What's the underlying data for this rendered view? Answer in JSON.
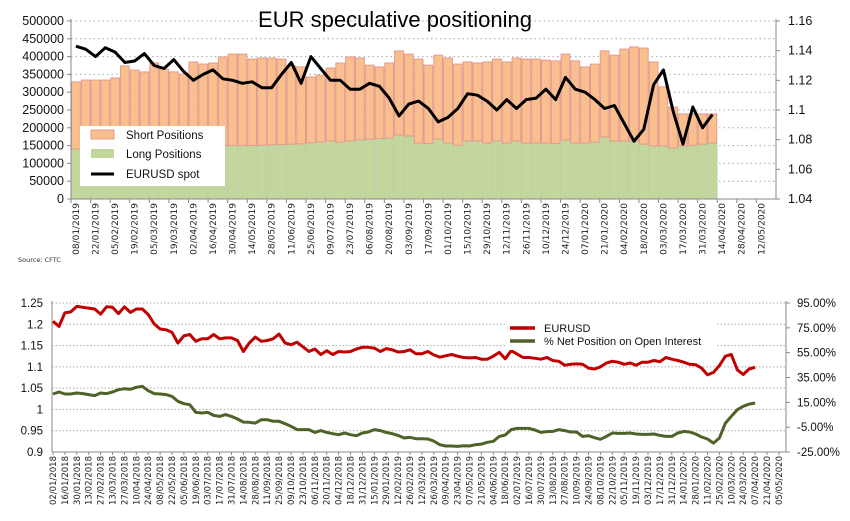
{
  "chart_data": [
    {
      "type": "bar",
      "stacked": true,
      "title": "EUR speculative positioning",
      "source": "Source: CFTC",
      "ylim": [
        0,
        500000
      ],
      "y_ticks": [
        "500000",
        "450000",
        "400000",
        "350000",
        "300000",
        "250000",
        "200000",
        "150000",
        "100000",
        "50000",
        "0"
      ],
      "y2lim": [
        1.04,
        1.16
      ],
      "y2_ticks": [
        "1.16",
        "1.14",
        "1.12",
        "1.1",
        "1.08",
        "1.06",
        "1.04"
      ],
      "grid": true,
      "legend_position": "bottom-left",
      "x_tick_labels": [
        "08/01/2019",
        "22/01/2019",
        "05/02/2019",
        "19/02/2019",
        "05/03/2019",
        "19/03/2019",
        "02/04/2019",
        "16/04/2019",
        "30/04/2019",
        "14/05/2019",
        "28/05/2019",
        "11/06/2019",
        "25/06/2019",
        "09/07/2019",
        "23/07/2019",
        "06/08/2019",
        "20/08/2019",
        "03/09/2019",
        "17/09/2019",
        "01/10/2019",
        "15/10/2019",
        "29/10/2019",
        "12/11/2019",
        "26/11/2019",
        "10/12/2019",
        "24/12/2019",
        "07/01/2020",
        "21/01/2020",
        "04/02/2020",
        "18/02/2020",
        "03/03/2020",
        "17/03/2020",
        "31/03/2020",
        "14/04/2020",
        "28/04/2020",
        "12/05/2020"
      ],
      "series": [
        {
          "name": "Short Positions",
          "type": "bar",
          "color": "#f9bf8f",
          "values": [
            189000,
            191000,
            191000,
            191000,
            195000,
            228000,
            216000,
            211000,
            236000,
            219000,
            211000,
            204000,
            237000,
            231000,
            234000,
            250000,
            257000,
            257000,
            243000,
            245000,
            244000,
            240000,
            220000,
            216000,
            185000,
            188000,
            205000,
            222000,
            236000,
            230000,
            208000,
            201000,
            211000,
            236000,
            230000,
            236000,
            220000,
            236000,
            239000,
            228000,
            222000,
            219000,
            228000,
            230000,
            228000,
            233000,
            236000,
            236000,
            233000,
            232000,
            241000,
            231000,
            214000,
            219000,
            242000,
            241000,
            258000,
            264000,
            270000,
            236000,
            166000,
            115000,
            90000,
            88000,
            85000,
            82000
          ]
        },
        {
          "name": "Long Positions",
          "type": "bar",
          "color": "#c3d69b",
          "values": [
            140000,
            143000,
            143000,
            143000,
            145000,
            146000,
            146000,
            146000,
            146000,
            146000,
            146000,
            147000,
            148000,
            148000,
            148000,
            149000,
            150000,
            150000,
            150000,
            151000,
            152000,
            153000,
            154000,
            155000,
            158000,
            160000,
            163000,
            160000,
            163000,
            166000,
            168000,
            170000,
            171000,
            180000,
            177000,
            157000,
            156000,
            168000,
            157000,
            151000,
            163000,
            163000,
            157000,
            163000,
            157000,
            163000,
            157000,
            157000,
            157000,
            156000,
            166000,
            157000,
            157000,
            160000,
            174000,
            163000,
            163000,
            163000,
            154000,
            149000,
            149000,
            143000,
            149000,
            151000,
            154000,
            157000
          ]
        },
        {
          "name": "EURUSD spot",
          "type": "line",
          "axis": "right",
          "color": "#000000",
          "values": [
            1.143,
            1.141,
            1.136,
            1.142,
            1.139,
            1.132,
            1.133,
            1.138,
            1.13,
            1.128,
            1.134,
            1.126,
            1.12,
            1.124,
            1.127,
            1.121,
            1.12,
            1.118,
            1.119,
            1.115,
            1.115,
            1.124,
            1.132,
            1.118,
            1.136,
            1.128,
            1.12,
            1.12,
            1.114,
            1.114,
            1.118,
            1.116,
            1.108,
            1.096,
            1.104,
            1.106,
            1.101,
            1.092,
            1.095,
            1.101,
            1.111,
            1.11,
            1.106,
            1.1,
            1.107,
            1.101,
            1.107,
            1.108,
            1.114,
            1.107,
            1.122,
            1.114,
            1.112,
            1.107,
            1.101,
            1.103,
            1.091,
            1.079,
            1.087,
            1.117,
            1.127,
            1.099,
            1.077,
            1.102,
            1.088,
            1.097
          ]
        }
      ]
    },
    {
      "type": "line",
      "ylim": [
        0.9,
        1.25
      ],
      "y_ticks": [
        "1.25",
        "1.2",
        "1.15",
        "1.1",
        "1.05",
        "1",
        "0.95",
        "0.9"
      ],
      "y2lim": [
        -25,
        95
      ],
      "y2_ticks": [
        "95.00%",
        "75.00%",
        "55.00%",
        "35.00%",
        "15.00%",
        "-5.00%",
        "-25.00%"
      ],
      "grid": true,
      "legend_position": "top-right",
      "x_tick_labels": [
        "02/01/2018",
        "16/01/2018",
        "30/01/2018",
        "13/02/2018",
        "27/02/2018",
        "13/03/2018",
        "27/03/2018",
        "10/04/2018",
        "24/04/2018",
        "08/05/2018",
        "22/05/2018",
        "05/06/2018",
        "19/06/2018",
        "03/07/2018",
        "17/07/2018",
        "31/07/2018",
        "14/08/2018",
        "28/08/2018",
        "11/09/2018",
        "25/09/2018",
        "09/10/2018",
        "23/10/2018",
        "06/11/2018",
        "20/11/2018",
        "04/12/2018",
        "18/12/2018",
        "31/12/2018",
        "15/01/2019",
        "29/01/2019",
        "12/02/2019",
        "26/02/2019",
        "12/03/2019",
        "26/03/2019",
        "09/04/2019",
        "23/04/2019",
        "07/05/2019",
        "21/05/2019",
        "04/06/2019",
        "18/06/2019",
        "02/07/2019",
        "16/07/2019",
        "30/07/2019",
        "13/08/2019",
        "27/08/2019",
        "10/09/2019",
        "24/09/2019",
        "08/10/2019",
        "22/10/2019",
        "05/11/2019",
        "19/11/2019",
        "03/12/2019",
        "17/12/2019",
        "31/12/2019",
        "14/01/2020",
        "28/01/2020",
        "11/02/2020",
        "25/02/2020",
        "10/03/2020",
        "24/03/2020",
        "07/04/2020",
        "21/04/2020",
        "05/05/2020"
      ],
      "series": [
        {
          "name": "EURUSD",
          "axis": "left",
          "color": "#c00000",
          "values": [
            1.207,
            1.195,
            1.227,
            1.229,
            1.242,
            1.24,
            1.238,
            1.236,
            1.224,
            1.241,
            1.24,
            1.225,
            1.241,
            1.228,
            1.236,
            1.236,
            1.223,
            1.201,
            1.189,
            1.187,
            1.181,
            1.156,
            1.173,
            1.176,
            1.16,
            1.166,
            1.166,
            1.176,
            1.166,
            1.168,
            1.168,
            1.162,
            1.136,
            1.156,
            1.17,
            1.16,
            1.162,
            1.166,
            1.177,
            1.156,
            1.152,
            1.158,
            1.147,
            1.136,
            1.142,
            1.129,
            1.138,
            1.129,
            1.136,
            1.135,
            1.136,
            1.142,
            1.146,
            1.146,
            1.144,
            1.136,
            1.143,
            1.14,
            1.135,
            1.136,
            1.14,
            1.131,
            1.131,
            1.136,
            1.128,
            1.123,
            1.126,
            1.129,
            1.125,
            1.122,
            1.121,
            1.122,
            1.118,
            1.118,
            1.125,
            1.134,
            1.119,
            1.138,
            1.13,
            1.122,
            1.122,
            1.12,
            1.118,
            1.122,
            1.115,
            1.113,
            1.104,
            1.106,
            1.107,
            1.106,
            1.097,
            1.095,
            1.1,
            1.109,
            1.113,
            1.111,
            1.106,
            1.109,
            1.104,
            1.111,
            1.111,
            1.115,
            1.112,
            1.122,
            1.118,
            1.115,
            1.111,
            1.106,
            1.105,
            1.097,
            1.081,
            1.087,
            1.103,
            1.125,
            1.129,
            1.093,
            1.082,
            1.095,
            1.099
          ]
        },
        {
          "name": "% Net Position on Open Interest",
          "axis": "right",
          "color": "#4f6228",
          "values": [
            21.7,
            23.3,
            21.7,
            21.7,
            22.5,
            22.0,
            21.2,
            20.4,
            22.5,
            22.0,
            23.3,
            25.2,
            26.0,
            25.5,
            27.1,
            27.9,
            24.4,
            22.0,
            21.7,
            21.2,
            19.8,
            15.8,
            13.9,
            13.1,
            6.9,
            6.4,
            6.9,
            4.5,
            3.7,
            5.1,
            3.7,
            1.6,
            -0.9,
            -1.1,
            -1.7,
            1.0,
            1.0,
            -0.3,
            -0.3,
            -2.2,
            -4.3,
            -7.0,
            -7.0,
            -7.0,
            -9.2,
            -7.8,
            -9.2,
            -10.3,
            -11.1,
            -9.7,
            -11.1,
            -11.9,
            -9.7,
            -8.9,
            -7.0,
            -7.8,
            -9.2,
            -10.3,
            -11.6,
            -13.7,
            -13.2,
            -14.3,
            -14.3,
            -14.5,
            -16.2,
            -19.1,
            -20.2,
            -20.2,
            -20.5,
            -19.9,
            -20.2,
            -19.1,
            -18.6,
            -17.2,
            -16.4,
            -12.4,
            -11.3,
            -7.0,
            -6.0,
            -6.0,
            -6.0,
            -7.3,
            -9.2,
            -8.6,
            -8.4,
            -7.0,
            -7.8,
            -8.9,
            -8.9,
            -12.4,
            -11.9,
            -13.5,
            -14.8,
            -12.4,
            -9.7,
            -10.0,
            -10.0,
            -9.7,
            -10.5,
            -10.8,
            -10.8,
            -10.5,
            -11.6,
            -12.4,
            -12.4,
            -9.7,
            -8.4,
            -8.9,
            -10.5,
            -12.9,
            -14.5,
            -17.8,
            -13.7,
            -1.7,
            3.7,
            9.1,
            11.8,
            13.6,
            14.5
          ]
        }
      ]
    }
  ]
}
